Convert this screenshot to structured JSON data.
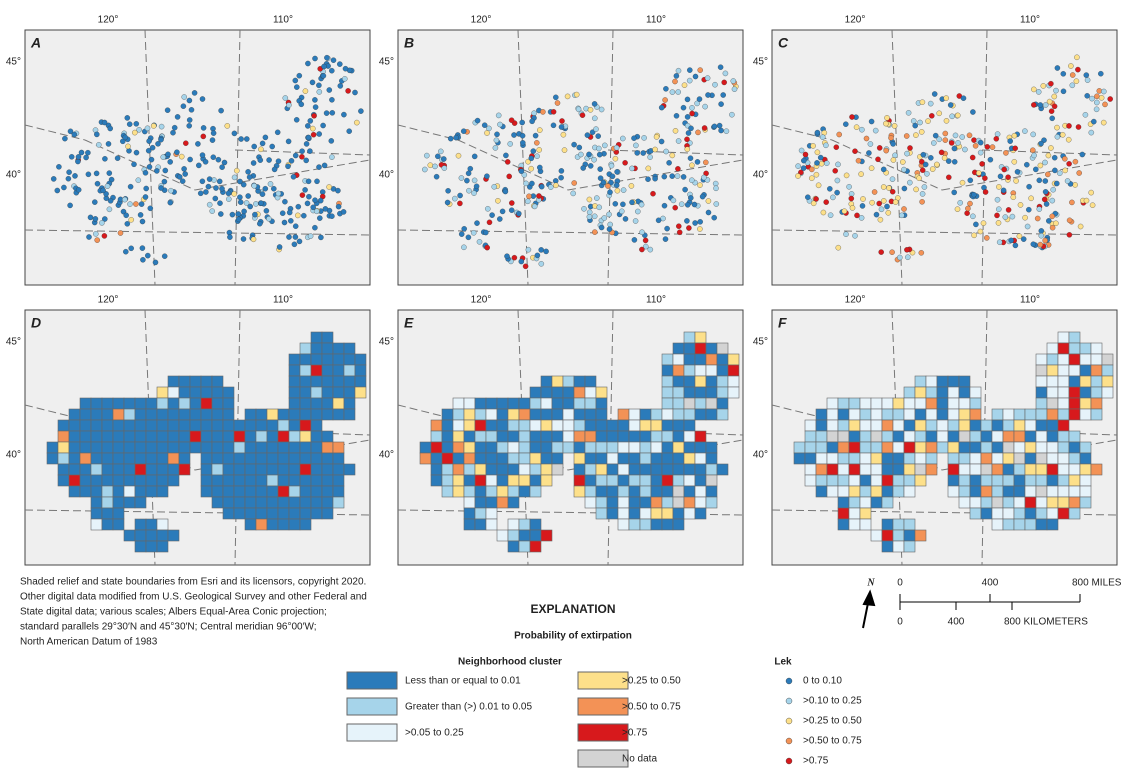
{
  "panels": [
    {
      "label": "A"
    },
    {
      "label": "B"
    },
    {
      "label": "C"
    },
    {
      "label": "D"
    },
    {
      "label": "E"
    },
    {
      "label": "F"
    }
  ],
  "graticule": {
    "lon": [
      "120°",
      "110°"
    ],
    "lat": [
      "45°",
      "40°"
    ]
  },
  "credit": [
    "Shaded relief and state boundaries from Esri and its licensors, copyright 2020.",
    "Other digital data modified from U.S. Geological Survey and other Federal and",
    "State digital data; various scales; Albers Equal-Area Conic projection;",
    "standard parallels 29°30′N and 45°30′N; Central meridian 96°00′W;",
    "North American Datum of 1983"
  ],
  "explanation": {
    "title": "EXPLANATION",
    "subtitle": "Probability of extirpation",
    "cluster": {
      "title": "Neighborhood cluster",
      "items": [
        {
          "label": "Less than or equal to 0.01",
          "color": "#2b7bba"
        },
        {
          "label": "Greater than (>) 0.01 to 0.05",
          "color": "#a6d4ea"
        },
        {
          "label": ">0.05 to 0.25",
          "color": "#e6f3fa"
        },
        {
          "label": ">0.25 to 0.50",
          "color": "#fde08a"
        },
        {
          "label": ">0.50 to 0.75",
          "color": "#f39256"
        },
        {
          "label": ">0.75",
          "color": "#d7191c"
        },
        {
          "label": "No data",
          "color": "#d3d3d3"
        }
      ]
    },
    "lek": {
      "title": "Lek",
      "items": [
        {
          "label": "0 to 0.10",
          "color": "#2b7bba"
        },
        {
          "label": ">0.10 to 0.25",
          "color": "#a6d4ea"
        },
        {
          "label": ">0.25 to 0.50",
          "color": "#fde08a"
        },
        {
          "label": ">0.50 to 0.75",
          "color": "#f39256"
        },
        {
          "label": ">0.75",
          "color": "#d7191c"
        }
      ]
    }
  },
  "scale": {
    "north": "N",
    "miles": [
      "0",
      "400",
      "800 MILES"
    ],
    "km": [
      "0",
      "400",
      "800 KILOMETERS"
    ]
  }
}
